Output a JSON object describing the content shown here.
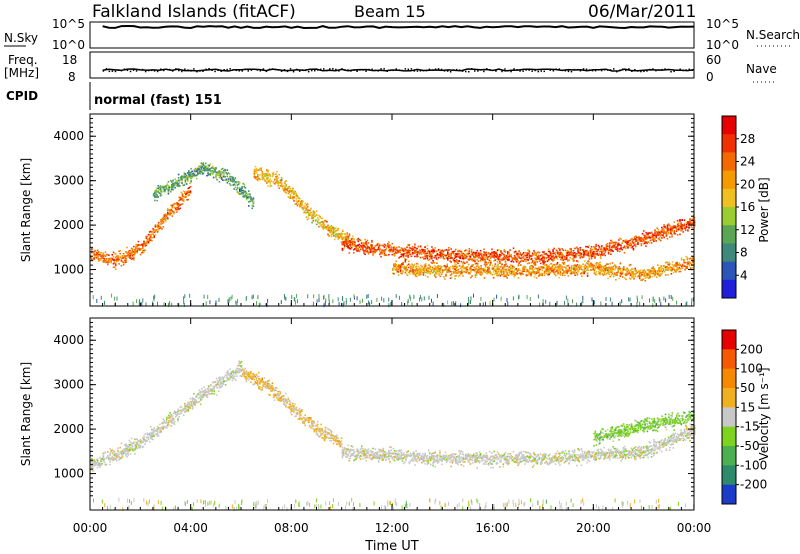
{
  "header": {
    "station": "Falkland Islands (fitACF)",
    "beam": "Beam 15",
    "date": "06/Mar/2011"
  },
  "summary_panels": {
    "nsky": {
      "label": "N.Sky",
      "right_label": "N.Search",
      "left_ticks": [
        "10^5",
        "10^0"
      ],
      "right_ticks": [
        "10^5",
        "10^0"
      ]
    },
    "freq": {
      "label_lines": [
        "Freq.",
        "[MHz]"
      ],
      "right_label": "Nave",
      "left_ticks": [
        "18",
        "8"
      ],
      "right_ticks": [
        "60",
        "0"
      ]
    },
    "cpid": {
      "label": "CPID",
      "program": "normal (fast) 151"
    }
  },
  "power_panel": {
    "ylabel": "Slant Range [km]",
    "yticks": [
      "4000",
      "3000",
      "2000",
      "1000"
    ],
    "colorbar_label": "Power [dB]",
    "colorbar_ticks": [
      "28",
      "24",
      "20",
      "16",
      "12",
      "8",
      "4"
    ],
    "colors": [
      "#1f1fdc",
      "#2b56b8",
      "#3d8a7a",
      "#5aa655",
      "#9acd32",
      "#f0c020",
      "#f59a00",
      "#f56a00",
      "#f03000",
      "#e60000"
    ]
  },
  "velocity_panel": {
    "ylabel": "Slant Range [km]",
    "yticks": [
      "4000",
      "3000",
      "2000",
      "1000"
    ],
    "colorbar_label": "Velocity [m s⁻¹]",
    "colorbar_ticks": [
      "200",
      "100",
      "50",
      "15",
      "-15",
      "-50",
      "-100",
      "-200"
    ],
    "colors": [
      "#1a3cc8",
      "#2d8a6a",
      "#4caf50",
      "#7ed321",
      "#c8c8c8",
      "#f0b020",
      "#f58a00",
      "#f55a00",
      "#e60000"
    ]
  },
  "x_axis": {
    "label": "Time UT",
    "ticks": [
      "00:00",
      "04:00",
      "08:00",
      "12:00",
      "16:00",
      "20:00",
      "00:00"
    ]
  },
  "chart_data": {
    "type": "heatmap",
    "title": "Falkland Islands (fitACF)",
    "subtitle": "Beam 15 06/Mar/2011",
    "xlabel": "Time UT",
    "x_range_hours": [
      0,
      24
    ],
    "y_range_km": [
      180,
      4500
    ],
    "power_scale_db": [
      0,
      30
    ],
    "velocity_scale": [
      -250,
      250
    ],
    "series": [
      {
        "name": "Power [dB]",
        "bands": [
          {
            "x": [
              0.0,
              1.0,
              2.0,
              3.0,
              4.0
            ],
            "y": [
              1350,
              1200,
              1500,
              2200,
              2800
            ],
            "value_db": 22
          },
          {
            "x": [
              2.5,
              3.5,
              4.5,
              5.5,
              6.5
            ],
            "y": [
              2700,
              3000,
              3300,
              3100,
              2500
            ],
            "value_db": 10
          },
          {
            "x": [
              6.5,
              7.5,
              8.5,
              9.5,
              10.5
            ],
            "y": [
              3200,
              3000,
              2400,
              1900,
              1600
            ],
            "value_db": 18
          },
          {
            "x": [
              10.0,
              12.0,
              14.0,
              16.0,
              18.0,
              20.0,
              22.0,
              24.0
            ],
            "y": [
              1600,
              1450,
              1350,
              1300,
              1300,
              1400,
              1700,
              2100
            ],
            "value_db": 24
          },
          {
            "x": [
              12.0,
              14.0,
              16.0,
              18.0,
              20.0,
              22.0,
              24.0
            ],
            "y": [
              1050,
              1000,
              1000,
              1000,
              1050,
              900,
              1200
            ],
            "value_db": 20
          }
        ]
      },
      {
        "name": "Velocity [m s-1]",
        "bands": [
          {
            "x": [
              0.0,
              2.0,
              4.0,
              6.0
            ],
            "y": [
              1200,
              1700,
              2600,
              3400
            ],
            "value": 0
          },
          {
            "x": [
              6.0,
              7.0,
              8.0,
              9.0,
              10.0
            ],
            "y": [
              3300,
              3000,
              2500,
              2000,
              1700
            ],
            "value": 40
          },
          {
            "x": [
              10.0,
              14.0,
              18.0,
              22.0,
              24.0
            ],
            "y": [
              1500,
              1350,
              1350,
              1500,
              2000
            ],
            "value": 0
          },
          {
            "x": [
              20.0,
              22.0,
              24.0
            ],
            "y": [
              1800,
              2100,
              2300
            ],
            "value": -60
          }
        ]
      }
    ]
  }
}
